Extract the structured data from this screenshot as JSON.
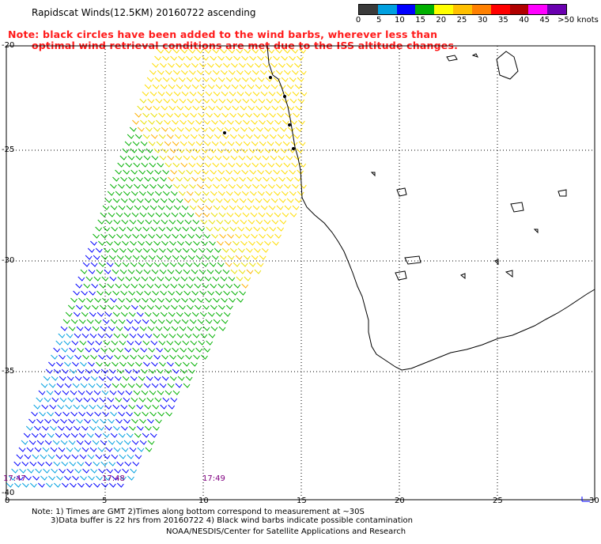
{
  "title": "Rapidscat Winds(12.5KM) 20160722 ascending",
  "note_line1": "Note: black circles have been added to the wind barbs, wherever less than",
  "note_line2": "optimal wind retrieval conditions are met due to the ISS altitude changes.",
  "legend": {
    "labels": [
      "0",
      "5",
      "10",
      "15",
      "20",
      "25",
      "30",
      "35",
      "40",
      "45",
      ">50 knots"
    ],
    "colors": [
      "#3a3a3a",
      "#00a0e0",
      "#0000ff",
      "#00b000",
      "#ffff00",
      "#ffc000",
      "#ff8000",
      "#ff0000",
      "#b00000",
      "#ff00ff",
      "#6a00b0"
    ]
  },
  "axes": {
    "lon_ticks": [
      "0",
      "5",
      "10",
      "15",
      "20",
      "25",
      "30"
    ],
    "lat_ticks": [
      "-20",
      "-25",
      "-30",
      "-35",
      "-40"
    ]
  },
  "times": [
    "17:47",
    "17:48",
    "17:49"
  ],
  "footnote1": "Note: 1) Times are GMT 2)Times along bottom correspond to measurement at ~30S",
  "footnote2": "3)Data buffer is 22 hrs from 20160722 4) Black wind barbs indicate possible contamination",
  "credit": "NOAA/NESDIS/Center for Satellite Applications and Research"
}
